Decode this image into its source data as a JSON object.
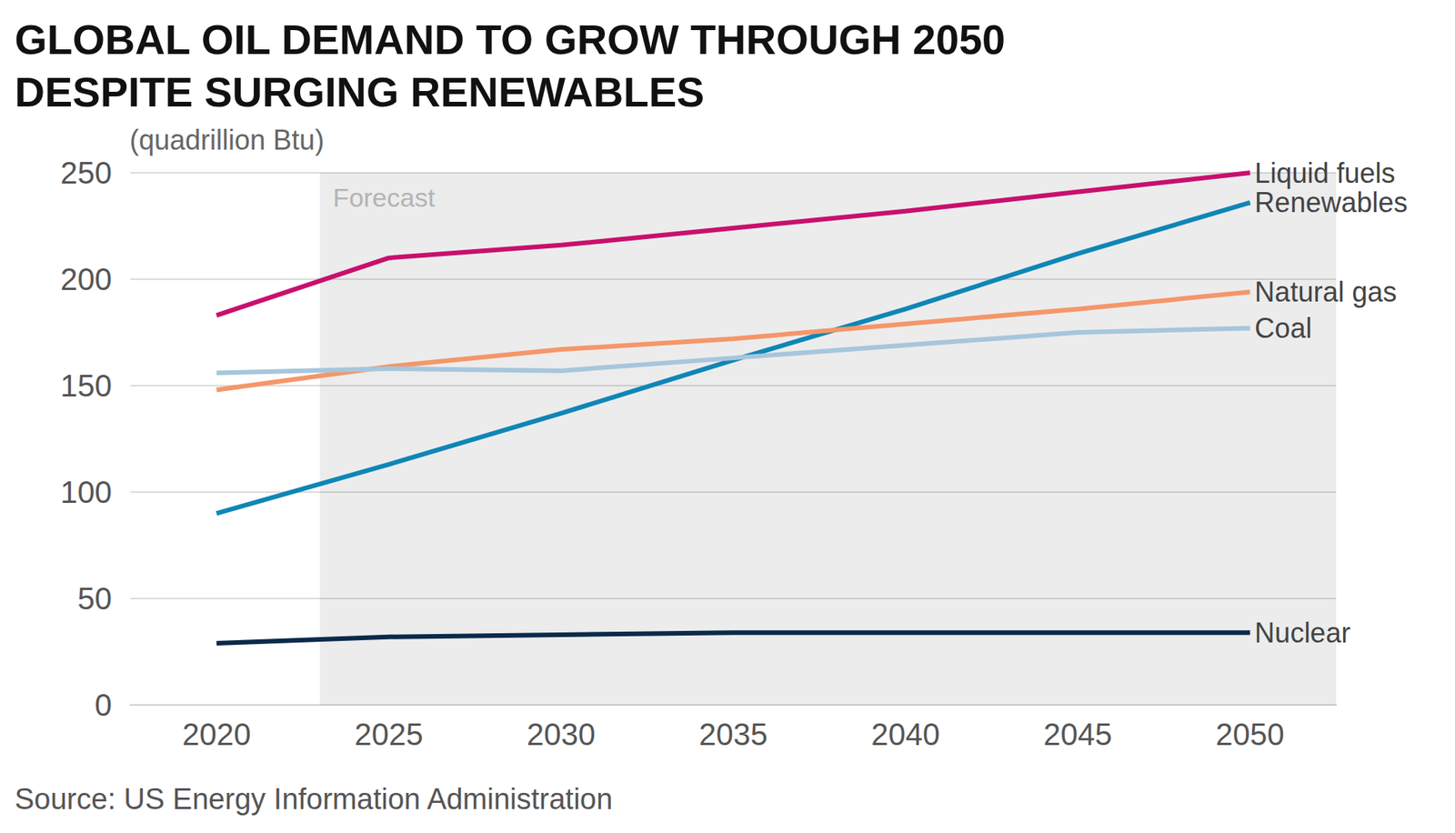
{
  "chart_data": {
    "type": "line",
    "title": "GLOBAL OIL DEMAND TO GROW THROUGH 2050\nDESPITE SURGING RENEWABLES",
    "y_label": "(quadrillion Btu)",
    "source": "Source: US Energy Information Administration",
    "x": [
      2020,
      2025,
      2030,
      2035,
      2040,
      2045,
      2050
    ],
    "xlim": [
      2017.5,
      2052.5
    ],
    "xticks": [
      2020,
      2025,
      2030,
      2035,
      2040,
      2045,
      2050
    ],
    "ylim": [
      0,
      250
    ],
    "yticks": [
      0,
      50,
      100,
      150,
      200,
      250
    ],
    "grid": true,
    "annotations": [
      {
        "text": "Forecast",
        "x_start": 2023
      }
    ],
    "series": [
      {
        "name": "Liquid fuels",
        "color": "#c8106e",
        "values": [
          183,
          210,
          216,
          224,
          232,
          241,
          250
        ]
      },
      {
        "name": "Renewables",
        "color": "#0f86b6",
        "values": [
          90,
          113,
          137,
          162,
          186,
          212,
          236
        ]
      },
      {
        "name": "Natural gas",
        "color": "#f4976a",
        "values": [
          148,
          159,
          167,
          172,
          179,
          186,
          194
        ]
      },
      {
        "name": "Coal",
        "color": "#a7c6dc",
        "values": [
          156,
          158,
          157,
          163,
          169,
          175,
          177
        ]
      },
      {
        "name": "Nuclear",
        "color": "#0b2a4a",
        "values": [
          29,
          32,
          33,
          34,
          34,
          34,
          34
        ]
      }
    ]
  }
}
